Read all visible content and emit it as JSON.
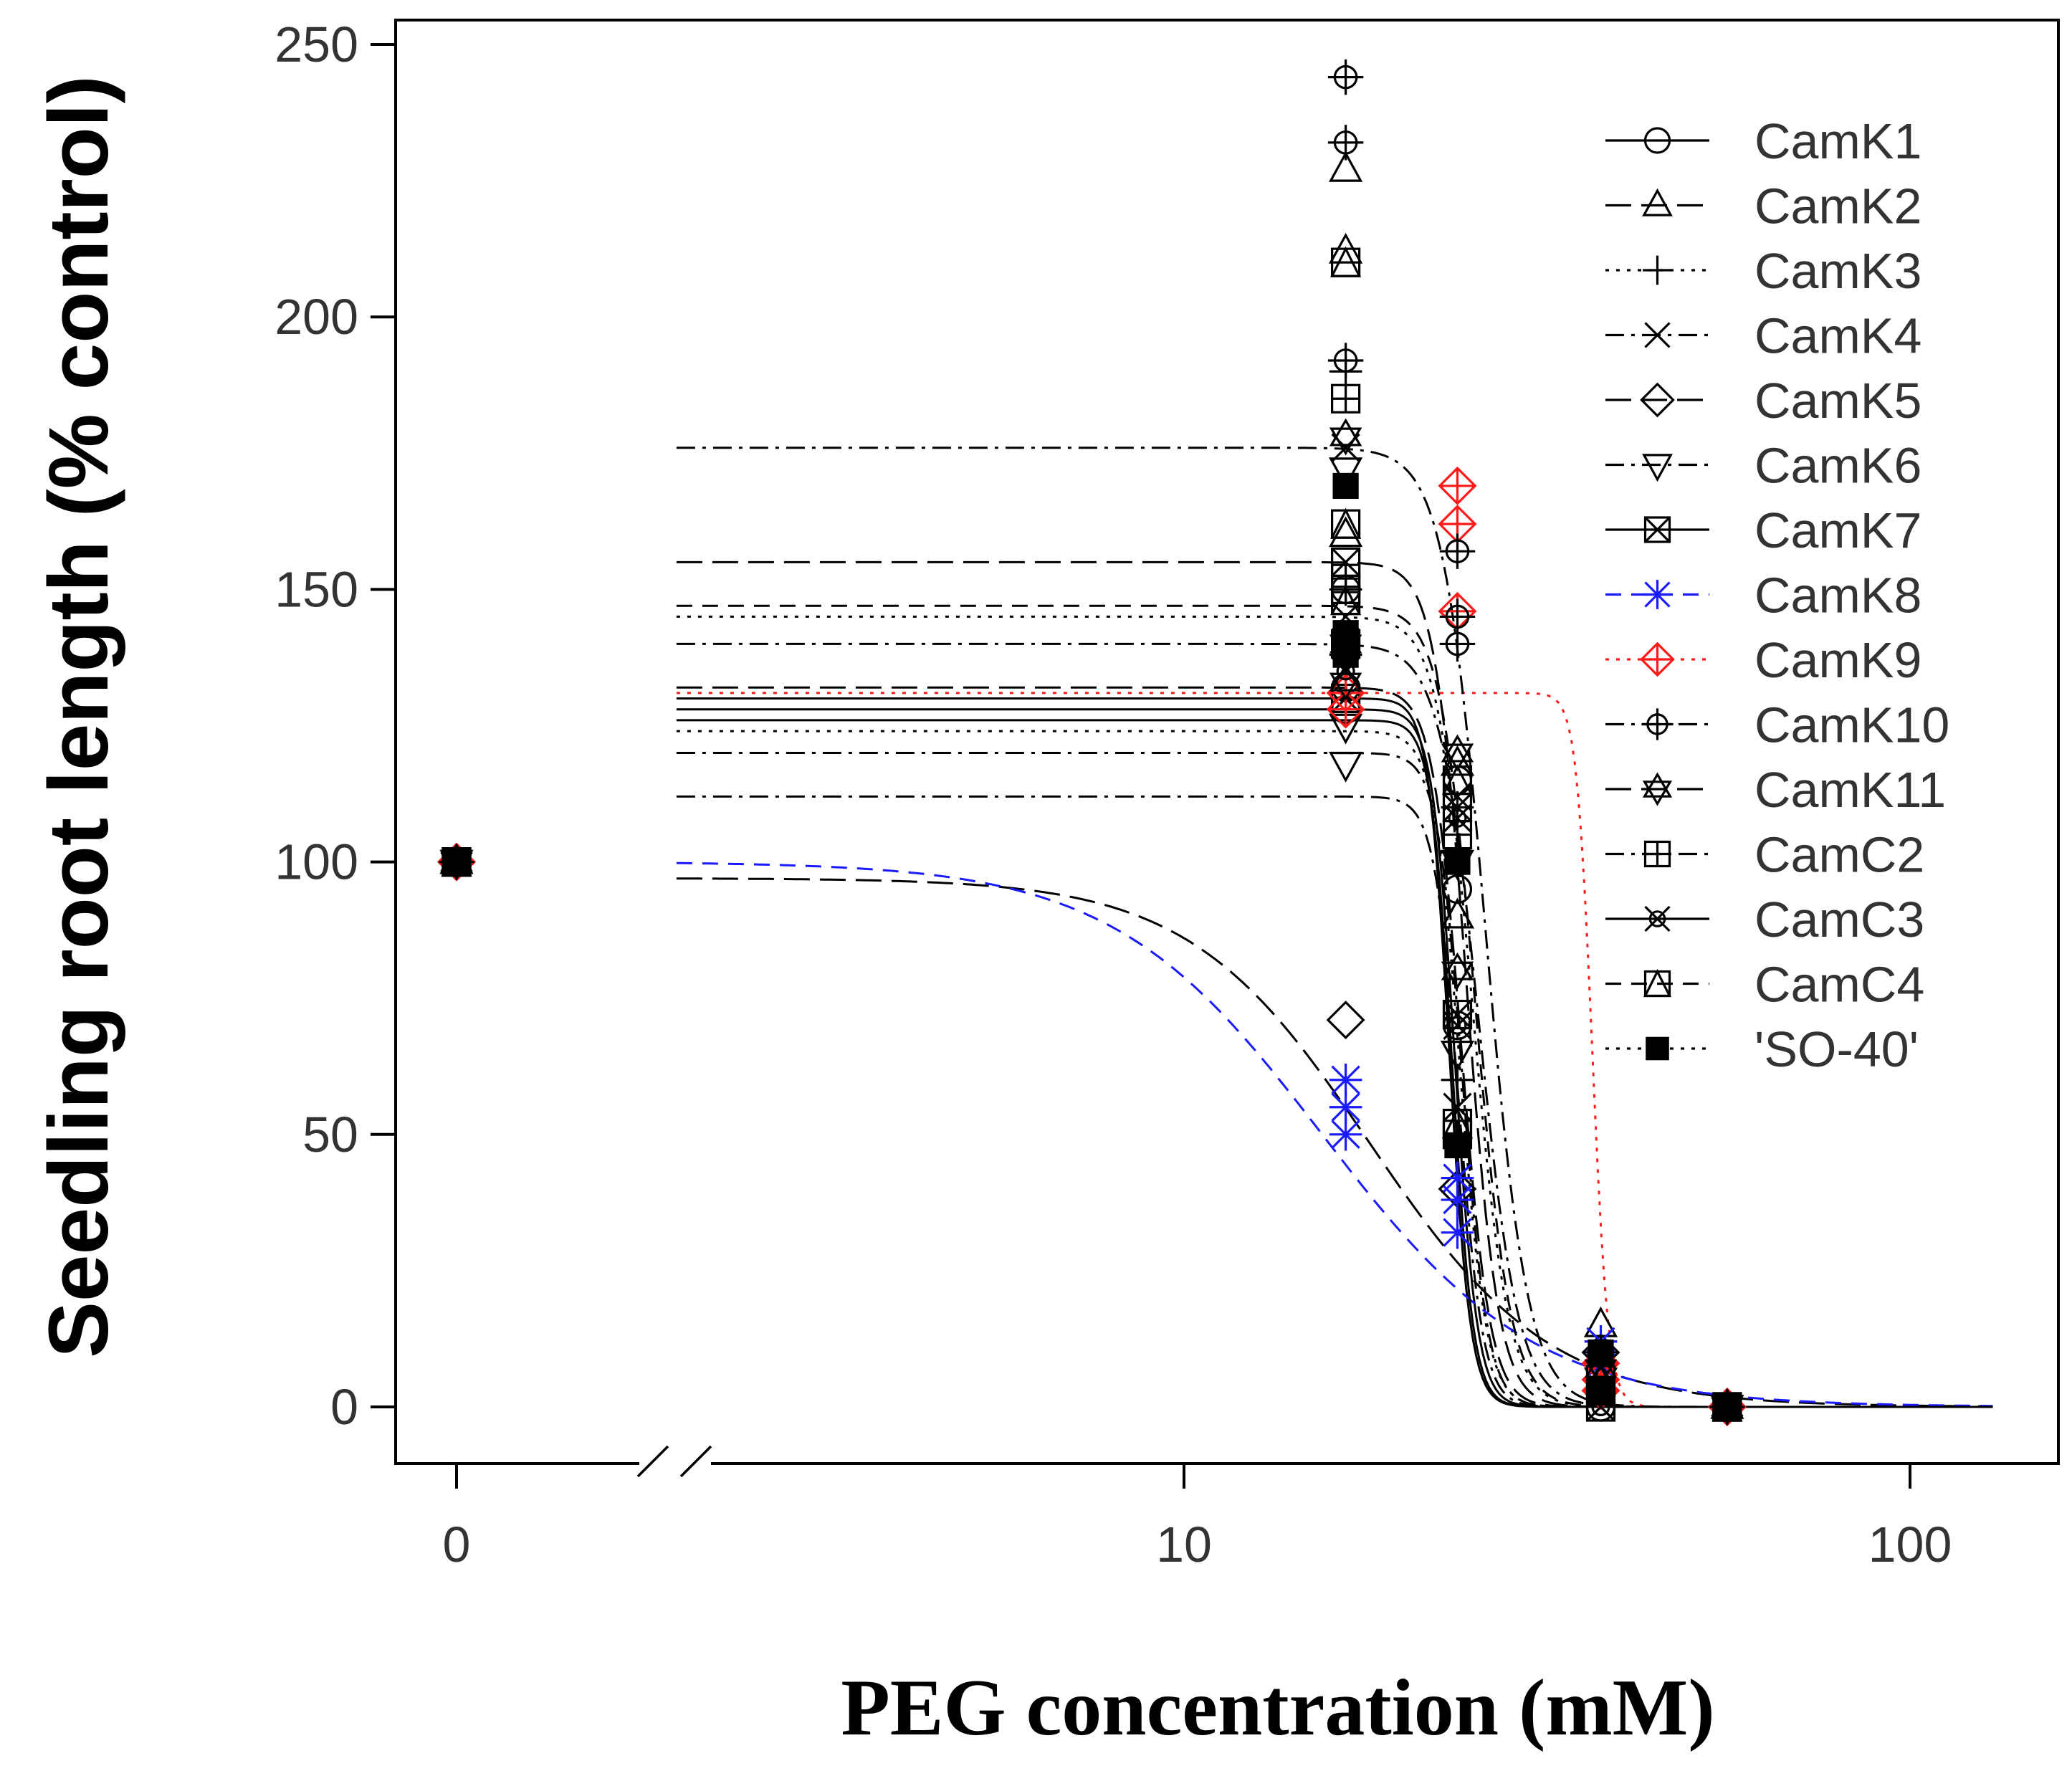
{
  "chart_data": {
    "type": "scatter",
    "title": "",
    "xlabel": "PEG concentration (mM)",
    "ylabel": "Seedling root length (% control)",
    "x_scale": "log",
    "x_axis_break": true,
    "xlim": [
      2,
      130
    ],
    "ylim": [
      0,
      250
    ],
    "x_ticks": [
      0,
      10,
      100
    ],
    "y_ticks": [
      0,
      50,
      100,
      150,
      200,
      250
    ],
    "legend_position": "top-right",
    "grid": false,
    "series": [
      {
        "name": "CamK1",
        "color": "#000000",
        "dash": "solid",
        "marker": "circle",
        "plateau": 130,
        "ec50": 23.2,
        "slope": 30,
        "points": [
          [
            0,
            100
          ],
          [
            16.7,
            150
          ],
          [
            16.7,
            132
          ],
          [
            16.7,
            128
          ],
          [
            23.8,
            115
          ],
          [
            23.8,
            95
          ],
          [
            23.8,
            70
          ],
          [
            37.5,
            0
          ],
          [
            37.5,
            5
          ],
          [
            56,
            0
          ]
        ]
      },
      {
        "name": "CamK2",
        "color": "#000000",
        "dash": "longdash",
        "marker": "triangle-up",
        "plateau": 155,
        "ec50": 24.5,
        "slope": 20,
        "points": [
          [
            0,
            100
          ],
          [
            16.7,
            227
          ],
          [
            16.7,
            212
          ],
          [
            16.7,
            160
          ],
          [
            23.8,
            118
          ],
          [
            23.8,
            90
          ],
          [
            37.5,
            15
          ],
          [
            37.5,
            5
          ],
          [
            56,
            0
          ]
        ]
      },
      {
        "name": "CamK3",
        "color": "#000000",
        "dash": "dotted",
        "marker": "plus",
        "plateau": 145,
        "ec50": 25,
        "slope": 18,
        "points": [
          [
            0,
            100
          ],
          [
            16.7,
            190
          ],
          [
            16.7,
            150
          ],
          [
            16.7,
            138
          ],
          [
            23.8,
            110
          ],
          [
            23.8,
            60
          ],
          [
            37.5,
            3
          ],
          [
            56,
            0
          ]
        ]
      },
      {
        "name": "CamK4",
        "color": "#000000",
        "dash": "dotdash",
        "marker": "x",
        "plateau": 140,
        "ec50": 25.5,
        "slope": 16,
        "points": [
          [
            0,
            100
          ],
          [
            16.7,
            176
          ],
          [
            16.7,
            145
          ],
          [
            16.7,
            135
          ],
          [
            23.8,
            112
          ],
          [
            23.8,
            55
          ],
          [
            37.5,
            5
          ],
          [
            56,
            0
          ]
        ]
      },
      {
        "name": "CamK5",
        "color": "#000000",
        "dash": "longdash",
        "marker": "diamond",
        "plateau": 97,
        "ec50": 18,
        "slope": 3.5,
        "points": [
          [
            0,
            100
          ],
          [
            16.7,
            71
          ],
          [
            23.8,
            40
          ],
          [
            37.5,
            10
          ],
          [
            56,
            0
          ]
        ]
      },
      {
        "name": "CamK6",
        "color": "#000000",
        "dash": "dotdash",
        "marker": "triangle-down",
        "plateau": 120,
        "ec50": 24.2,
        "slope": 25,
        "points": [
          [
            0,
            100
          ],
          [
            16.7,
            172
          ],
          [
            16.7,
            125
          ],
          [
            16.7,
            118
          ],
          [
            23.8,
            100
          ],
          [
            23.8,
            65
          ],
          [
            37.5,
            5
          ],
          [
            56,
            0
          ]
        ]
      },
      {
        "name": "CamK7",
        "color": "#000000",
        "dash": "solid",
        "marker": "boxtimes",
        "plateau": 128,
        "ec50": 23.6,
        "slope": 28,
        "points": [
          [
            0,
            100
          ],
          [
            16.7,
            155
          ],
          [
            16.7,
            140
          ],
          [
            16.7,
            130
          ],
          [
            23.8,
            110
          ],
          [
            23.8,
            72
          ],
          [
            37.5,
            0
          ],
          [
            56,
            0
          ]
        ]
      },
      {
        "name": "CamK8",
        "color": "#1a1aff",
        "dash": "dashed",
        "marker": "asterisk",
        "plateau": 100,
        "ec50": 15.5,
        "slope": 3,
        "points": [
          [
            0,
            100
          ],
          [
            16.7,
            60
          ],
          [
            16.7,
            55
          ],
          [
            16.7,
            50
          ],
          [
            23.8,
            42
          ],
          [
            23.8,
            38
          ],
          [
            23.8,
            32
          ],
          [
            37.5,
            12
          ],
          [
            37.5,
            8
          ],
          [
            56,
            0
          ]
        ]
      },
      {
        "name": "CamK9",
        "color": "#ff1a1a",
        "dash": "dotted",
        "marker": "diamond-plus",
        "plateau": 131,
        "ec50": 36.5,
        "slope": 40,
        "points": [
          [
            0,
            100
          ],
          [
            16.7,
            131
          ],
          [
            16.7,
            128
          ],
          [
            23.8,
            169
          ],
          [
            23.8,
            162
          ],
          [
            23.8,
            146
          ],
          [
            37.5,
            8
          ],
          [
            37.5,
            5
          ],
          [
            37.5,
            3
          ],
          [
            56,
            0
          ]
        ]
      },
      {
        "name": "CamK10",
        "color": "#000000",
        "dash": "dotdash",
        "marker": "circle-plus",
        "plateau": 176,
        "ec50": 26,
        "slope": 15,
        "points": [
          [
            0,
            100
          ],
          [
            16.7,
            244
          ],
          [
            16.7,
            232
          ],
          [
            16.7,
            192
          ],
          [
            23.8,
            157
          ],
          [
            23.8,
            145
          ],
          [
            23.8,
            140
          ],
          [
            37.5,
            10
          ],
          [
            56,
            0
          ]
        ]
      },
      {
        "name": "CamK11",
        "color": "#000000",
        "dash": "longdash",
        "marker": "star-of-david",
        "plateau": 132,
        "ec50": 24.1,
        "slope": 22,
        "points": [
          [
            0,
            100
          ],
          [
            16.7,
            178
          ],
          [
            16.7,
            140
          ],
          [
            16.7,
            133
          ],
          [
            23.8,
            120
          ],
          [
            23.8,
            80
          ],
          [
            37.5,
            7
          ],
          [
            56,
            0
          ]
        ]
      },
      {
        "name": "CamC2",
        "color": "#000000",
        "dash": "dotdash",
        "marker": "boxplus",
        "plateau": 112,
        "ec50": 23.9,
        "slope": 26,
        "points": [
          [
            0,
            100
          ],
          [
            16.7,
            185
          ],
          [
            16.7,
            152
          ],
          [
            16.7,
            150
          ],
          [
            23.8,
            105
          ],
          [
            23.8,
            50
          ],
          [
            37.5,
            3
          ],
          [
            56,
            0
          ]
        ]
      },
      {
        "name": "CamC3",
        "color": "#000000",
        "dash": "solid",
        "marker": "circle-x",
        "plateau": 126,
        "ec50": 23.4,
        "slope": 30,
        "points": [
          [
            0,
            100
          ],
          [
            16.7,
            140
          ],
          [
            16.7,
            135
          ],
          [
            23.8,
            108
          ],
          [
            23.8,
            70
          ],
          [
            37.5,
            0
          ],
          [
            56,
            0
          ]
        ]
      },
      {
        "name": "CamC4",
        "color": "#000000",
        "dash": "dashed",
        "marker": "box-triangle",
        "plateau": 147,
        "ec50": 25.2,
        "slope": 18,
        "points": [
          [
            0,
            100
          ],
          [
            16.7,
            210
          ],
          [
            16.7,
            162
          ],
          [
            16.7,
            148
          ],
          [
            23.8,
            115
          ],
          [
            23.8,
            52
          ],
          [
            37.5,
            5
          ],
          [
            56,
            0
          ]
        ]
      },
      {
        "name": "'SO-40'",
        "color": "#000000",
        "dash": "dotted",
        "marker": "filled-square",
        "plateau": 124,
        "ec50": 24,
        "slope": 24,
        "points": [
          [
            0,
            100
          ],
          [
            16.7,
            169
          ],
          [
            16.7,
            142
          ],
          [
            16.7,
            138
          ],
          [
            23.8,
            100
          ],
          [
            23.8,
            48
          ],
          [
            37.5,
            10
          ],
          [
            37.5,
            3
          ],
          [
            56,
            0
          ]
        ]
      }
    ]
  }
}
